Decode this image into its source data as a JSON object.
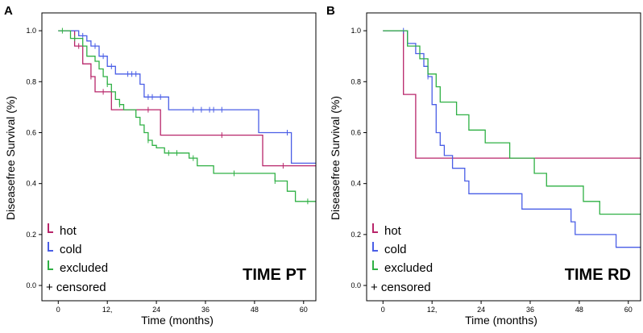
{
  "figure": {
    "censor_symbol": "+"
  },
  "chart_data": [
    {
      "type": "line",
      "subtype": "kaplan-meier",
      "panel_label": "A",
      "title": "TIME PT",
      "xlabel": "Time (months)",
      "ylabel": "Diseasefree  Survival (%)",
      "xlim": [
        -4,
        63
      ],
      "ylim": [
        -0.06,
        1.07
      ],
      "xticks": [
        0,
        12,
        24,
        36,
        48,
        60
      ],
      "xtick_labels": [
        "0",
        "12,",
        "24",
        "36",
        "48",
        "60"
      ],
      "yticks": [
        0.0,
        0.2,
        0.4,
        0.6,
        0.8,
        1.0
      ],
      "ytick_labels": [
        "0.0",
        "0.2",
        "0.4",
        "0.6",
        "0.8",
        "1.0"
      ],
      "legend": [
        "hot",
        "cold",
        "excluded",
        "+ censored"
      ],
      "series": [
        {
          "name": "hot",
          "color": "#b8256a",
          "steps": [
            [
              0,
              1.0
            ],
            [
              4,
              0.94
            ],
            [
              6,
              0.87
            ],
            [
              8,
              0.82
            ],
            [
              9,
              0.76
            ],
            [
              12,
              0.76
            ],
            [
              13,
              0.69
            ],
            [
              25,
              0.59
            ],
            [
              50,
              0.47
            ],
            [
              63,
              0.47
            ]
          ],
          "censored": [
            [
              5,
              0.94
            ],
            [
              8,
              0.82
            ],
            [
              11,
              0.76
            ],
            [
              22,
              0.69
            ],
            [
              40,
              0.59
            ],
            [
              55,
              0.47
            ]
          ]
        },
        {
          "name": "cold",
          "color": "#4a5ee6",
          "steps": [
            [
              0,
              1.0
            ],
            [
              5,
              0.98
            ],
            [
              7,
              0.96
            ],
            [
              8,
              0.94
            ],
            [
              10,
              0.9
            ],
            [
              12,
              0.86
            ],
            [
              14,
              0.83
            ],
            [
              20,
              0.79
            ],
            [
              21,
              0.74
            ],
            [
              27,
              0.69
            ],
            [
              49,
              0.6
            ],
            [
              57,
              0.48
            ],
            [
              63,
              0.48
            ]
          ],
          "censored": [
            [
              6,
              0.98
            ],
            [
              9,
              0.94
            ],
            [
              11,
              0.9
            ],
            [
              13,
              0.86
            ],
            [
              17,
              0.83
            ],
            [
              18,
              0.83
            ],
            [
              19,
              0.83
            ],
            [
              22,
              0.74
            ],
            [
              23,
              0.74
            ],
            [
              25,
              0.74
            ],
            [
              33,
              0.69
            ],
            [
              35,
              0.69
            ],
            [
              37,
              0.69
            ],
            [
              38,
              0.69
            ],
            [
              40,
              0.69
            ],
            [
              56,
              0.6
            ]
          ]
        },
        {
          "name": "excluded",
          "color": "#2fb044",
          "steps": [
            [
              0,
              1.0
            ],
            [
              3,
              0.97
            ],
            [
              6,
              0.94
            ],
            [
              7,
              0.9
            ],
            [
              9,
              0.88
            ],
            [
              10,
              0.85
            ],
            [
              11,
              0.82
            ],
            [
              12,
              0.79
            ],
            [
              13,
              0.76
            ],
            [
              14,
              0.73
            ],
            [
              15,
              0.71
            ],
            [
              16,
              0.69
            ],
            [
              19,
              0.66
            ],
            [
              20,
              0.63
            ],
            [
              21,
              0.6
            ],
            [
              22,
              0.57
            ],
            [
              23,
              0.55
            ],
            [
              24,
              0.54
            ],
            [
              26,
              0.52
            ],
            [
              32,
              0.5
            ],
            [
              34,
              0.47
            ],
            [
              38,
              0.44
            ],
            [
              53,
              0.41
            ],
            [
              56,
              0.37
            ],
            [
              58,
              0.33
            ],
            [
              63,
              0.33
            ]
          ],
          "censored": [
            [
              1,
              1.0
            ],
            [
              4,
              0.97
            ],
            [
              12,
              0.79
            ],
            [
              15,
              0.71
            ],
            [
              22,
              0.57
            ],
            [
              27,
              0.52
            ],
            [
              29,
              0.52
            ],
            [
              33,
              0.5
            ],
            [
              43,
              0.44
            ],
            [
              53,
              0.41
            ],
            [
              61,
              0.33
            ]
          ]
        }
      ]
    },
    {
      "type": "line",
      "subtype": "kaplan-meier",
      "panel_label": "B",
      "title": "TIME RD",
      "xlabel": "Time (months)",
      "ylabel": "Diseasefree  Survival (%)",
      "xlim": [
        -4,
        63
      ],
      "ylim": [
        -0.06,
        1.07
      ],
      "xticks": [
        0,
        12,
        24,
        36,
        48,
        60
      ],
      "xtick_labels": [
        "0",
        "12,",
        "24",
        "36",
        "48",
        "60"
      ],
      "yticks": [
        0.0,
        0.2,
        0.4,
        0.6,
        0.8,
        1.0
      ],
      "ytick_labels": [
        "0.0",
        "0.2",
        "0.4",
        "0.6",
        "0.8",
        "1.0"
      ],
      "legend": [
        "hot",
        "cold",
        "excluded",
        "+ censored"
      ],
      "series": [
        {
          "name": "hot",
          "color": "#b8256a",
          "steps": [
            [
              0,
              1.0
            ],
            [
              5,
              0.75
            ],
            [
              8,
              0.5
            ],
            [
              63,
              0.5
            ]
          ],
          "censored": []
        },
        {
          "name": "cold",
          "color": "#4a5ee6",
          "steps": [
            [
              0,
              1.0
            ],
            [
              6,
              0.95
            ],
            [
              8,
              0.91
            ],
            [
              10,
              0.86
            ],
            [
              11,
              0.82
            ],
            [
              12,
              0.71
            ],
            [
              13,
              0.6
            ],
            [
              14,
              0.55
            ],
            [
              15,
              0.51
            ],
            [
              17,
              0.46
            ],
            [
              20,
              0.41
            ],
            [
              21,
              0.36
            ],
            [
              34,
              0.3
            ],
            [
              46,
              0.25
            ],
            [
              47,
              0.2
            ],
            [
              57,
              0.15
            ],
            [
              63,
              0.15
            ]
          ],
          "censored": [
            [
              5,
              1.0
            ],
            [
              9,
              0.91
            ],
            [
              11,
              0.82
            ]
          ]
        },
        {
          "name": "excluded",
          "color": "#2fb044",
          "steps": [
            [
              0,
              1.0
            ],
            [
              6,
              0.94
            ],
            [
              9,
              0.89
            ],
            [
              11,
              0.83
            ],
            [
              13,
              0.78
            ],
            [
              14,
              0.72
            ],
            [
              18,
              0.67
            ],
            [
              21,
              0.61
            ],
            [
              25,
              0.56
            ],
            [
              31,
              0.5
            ],
            [
              37,
              0.44
            ],
            [
              40,
              0.39
            ],
            [
              49,
              0.33
            ],
            [
              53,
              0.28
            ],
            [
              63,
              0.28
            ]
          ],
          "censored": []
        }
      ]
    }
  ]
}
